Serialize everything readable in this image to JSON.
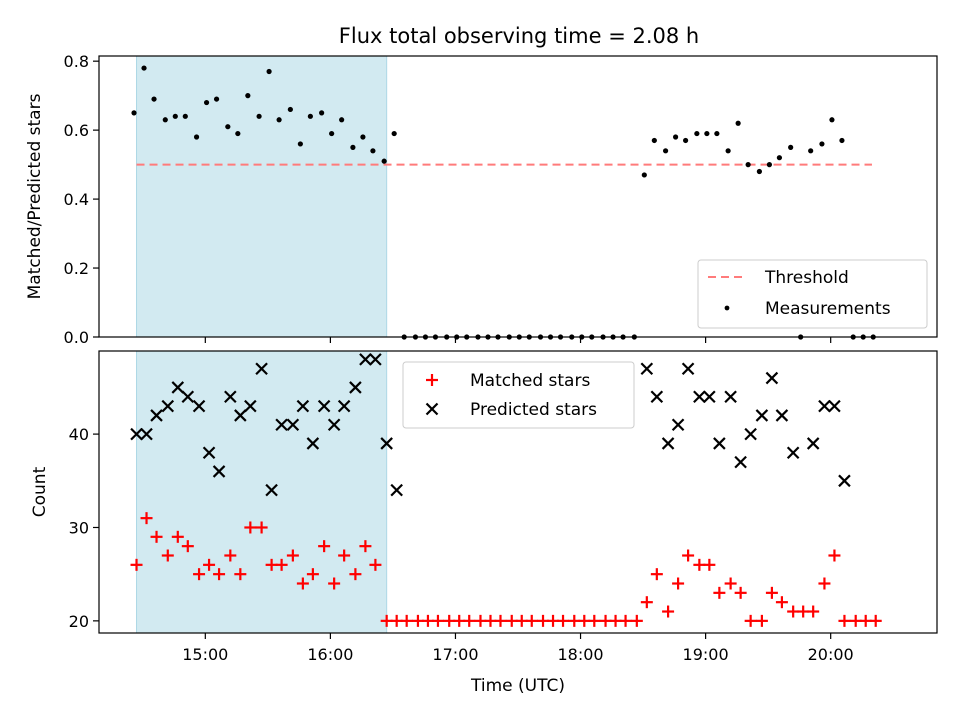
{
  "title": "Flux total observing time = 2.08 h",
  "colors": {
    "shade": "#add8e6",
    "threshold": "#ff7b7b",
    "measurement": "#000000",
    "matched": "#ff0000",
    "predicted": "#000000"
  },
  "chart_data": [
    {
      "type": "scatter",
      "ylabel": "Matched/Predicted stars",
      "ylim": [
        0,
        0.815
      ],
      "yticks": [
        "0.0",
        "0.2",
        "0.4",
        "0.6",
        "0.8"
      ],
      "x_unit": "hours (UTC)",
      "xlim": [
        14.15,
        20.85
      ],
      "shaded_span": [
        14.45,
        16.45
      ],
      "legend_position": "lower-right",
      "legend": [
        "Threshold",
        "Measurements"
      ],
      "threshold": {
        "name": "Threshold",
        "y": 0.5,
        "x": [
          14.45,
          20.33
        ]
      },
      "series": [
        {
          "name": "Measurements",
          "marker": "dot",
          "points": [
            [
              14.43,
              0.65
            ],
            [
              14.51,
              0.78
            ],
            [
              14.59,
              0.69
            ],
            [
              14.68,
              0.63
            ],
            [
              14.76,
              0.64
            ],
            [
              14.84,
              0.64
            ],
            [
              14.93,
              0.58
            ],
            [
              15.01,
              0.68
            ],
            [
              15.09,
              0.69
            ],
            [
              15.18,
              0.61
            ],
            [
              15.26,
              0.59
            ],
            [
              15.34,
              0.7
            ],
            [
              15.43,
              0.64
            ],
            [
              15.51,
              0.77
            ],
            [
              15.59,
              0.63
            ],
            [
              15.68,
              0.66
            ],
            [
              15.76,
              0.56
            ],
            [
              15.84,
              0.64
            ],
            [
              15.93,
              0.65
            ],
            [
              16.01,
              0.59
            ],
            [
              16.09,
              0.63
            ],
            [
              16.18,
              0.55
            ],
            [
              16.26,
              0.58
            ],
            [
              16.34,
              0.54
            ],
            [
              16.43,
              0.51
            ],
            [
              16.51,
              0.59
            ],
            [
              16.59,
              0.0
            ],
            [
              16.68,
              0.0
            ],
            [
              16.76,
              0.0
            ],
            [
              16.84,
              0.0
            ],
            [
              16.93,
              0.0
            ],
            [
              17.01,
              0.0
            ],
            [
              17.09,
              0.0
            ],
            [
              17.18,
              0.0
            ],
            [
              17.26,
              0.0
            ],
            [
              17.34,
              0.0
            ],
            [
              17.43,
              0.0
            ],
            [
              17.51,
              0.0
            ],
            [
              17.59,
              0.0
            ],
            [
              17.68,
              0.0
            ],
            [
              17.76,
              0.0
            ],
            [
              17.84,
              0.0
            ],
            [
              17.93,
              0.0
            ],
            [
              18.01,
              0.0
            ],
            [
              18.09,
              0.0
            ],
            [
              18.18,
              0.0
            ],
            [
              18.26,
              0.0
            ],
            [
              18.34,
              0.0
            ],
            [
              18.43,
              0.0
            ],
            [
              18.51,
              0.47
            ],
            [
              18.59,
              0.57
            ],
            [
              18.68,
              0.54
            ],
            [
              18.76,
              0.58
            ],
            [
              18.84,
              0.57
            ],
            [
              18.93,
              0.59
            ],
            [
              19.01,
              0.59
            ],
            [
              19.09,
              0.59
            ],
            [
              19.18,
              0.54
            ],
            [
              19.26,
              0.62
            ],
            [
              19.34,
              0.5
            ],
            [
              19.43,
              0.48
            ],
            [
              19.51,
              0.5
            ],
            [
              19.59,
              0.52
            ],
            [
              19.68,
              0.55
            ],
            [
              19.76,
              0.0
            ],
            [
              19.84,
              0.54
            ],
            [
              19.93,
              0.56
            ],
            [
              20.01,
              0.63
            ],
            [
              20.09,
              0.57
            ],
            [
              20.18,
              0.0
            ],
            [
              20.26,
              0.0
            ],
            [
              20.34,
              0.0
            ]
          ]
        }
      ]
    },
    {
      "type": "scatter",
      "xlabel": "Time (UTC)",
      "ylabel": "Count",
      "ylim": [
        18.7,
        48.9
      ],
      "yticks": [
        "20",
        "30",
        "40"
      ],
      "x_unit": "hours (UTC)",
      "xlim": [
        14.15,
        20.85
      ],
      "xticks": [
        "15:00",
        "16:00",
        "17:00",
        "18:00",
        "19:00",
        "20:00"
      ],
      "shaded_span": [
        14.45,
        16.45
      ],
      "legend_position": "upper-center",
      "legend": [
        "Matched stars",
        "Predicted stars"
      ],
      "series": [
        {
          "name": "Matched stars",
          "marker": "plus",
          "points": [
            [
              14.45,
              26
            ],
            [
              14.53,
              31
            ],
            [
              14.61,
              29
            ],
            [
              14.7,
              27
            ],
            [
              14.78,
              29
            ],
            [
              14.86,
              28
            ],
            [
              14.95,
              25
            ],
            [
              15.03,
              26
            ],
            [
              15.11,
              25
            ],
            [
              15.2,
              27
            ],
            [
              15.28,
              25
            ],
            [
              15.36,
              30
            ],
            [
              15.45,
              30
            ],
            [
              15.53,
              26
            ],
            [
              15.61,
              26
            ],
            [
              15.7,
              27
            ],
            [
              15.78,
              24
            ],
            [
              15.86,
              25
            ],
            [
              15.95,
              28
            ],
            [
              16.03,
              24
            ],
            [
              16.11,
              27
            ],
            [
              16.2,
              25
            ],
            [
              16.28,
              28
            ],
            [
              16.36,
              26
            ],
            [
              16.45,
              20
            ],
            [
              16.53,
              20
            ],
            [
              16.61,
              20
            ],
            [
              16.7,
              20
            ],
            [
              16.78,
              20
            ],
            [
              16.86,
              20
            ],
            [
              16.95,
              20
            ],
            [
              17.03,
              20
            ],
            [
              17.11,
              20
            ],
            [
              17.2,
              20
            ],
            [
              17.28,
              20
            ],
            [
              17.36,
              20
            ],
            [
              17.45,
              20
            ],
            [
              17.53,
              20
            ],
            [
              17.61,
              20
            ],
            [
              17.7,
              20
            ],
            [
              17.78,
              20
            ],
            [
              17.86,
              20
            ],
            [
              17.95,
              20
            ],
            [
              18.03,
              20
            ],
            [
              18.11,
              20
            ],
            [
              18.2,
              20
            ],
            [
              18.28,
              20
            ],
            [
              18.36,
              20
            ],
            [
              18.45,
              20
            ],
            [
              18.53,
              22
            ],
            [
              18.61,
              25
            ],
            [
              18.7,
              21
            ],
            [
              18.78,
              24
            ],
            [
              18.86,
              27
            ],
            [
              18.95,
              26
            ],
            [
              19.03,
              26
            ],
            [
              19.11,
              23
            ],
            [
              19.2,
              24
            ],
            [
              19.28,
              23
            ],
            [
              19.36,
              20
            ],
            [
              19.45,
              20
            ],
            [
              19.53,
              23
            ],
            [
              19.61,
              22
            ],
            [
              19.7,
              21
            ],
            [
              19.78,
              21
            ],
            [
              19.86,
              21
            ],
            [
              19.95,
              24
            ],
            [
              20.03,
              27
            ],
            [
              20.11,
              20
            ],
            [
              20.2,
              20
            ],
            [
              20.28,
              20
            ],
            [
              20.36,
              20
            ]
          ]
        },
        {
          "name": "Predicted stars",
          "marker": "x",
          "points": [
            [
              14.45,
              40
            ],
            [
              14.53,
              40
            ],
            [
              14.61,
              42
            ],
            [
              14.7,
              43
            ],
            [
              14.78,
              45
            ],
            [
              14.86,
              44
            ],
            [
              14.95,
              43
            ],
            [
              15.03,
              38
            ],
            [
              15.11,
              36
            ],
            [
              15.2,
              44
            ],
            [
              15.28,
              42
            ],
            [
              15.36,
              43
            ],
            [
              15.45,
              47
            ],
            [
              15.53,
              34
            ],
            [
              15.61,
              41
            ],
            [
              15.7,
              41
            ],
            [
              15.78,
              43
            ],
            [
              15.86,
              39
            ],
            [
              15.95,
              43
            ],
            [
              16.03,
              41
            ],
            [
              16.11,
              43
            ],
            [
              16.2,
              45
            ],
            [
              16.28,
              48
            ],
            [
              16.36,
              48
            ],
            [
              16.45,
              39
            ],
            [
              16.53,
              34
            ],
            [
              18.53,
              47
            ],
            [
              18.61,
              44
            ],
            [
              18.7,
              39
            ],
            [
              18.78,
              41
            ],
            [
              18.86,
              47
            ],
            [
              18.95,
              44
            ],
            [
              19.03,
              44
            ],
            [
              19.11,
              39
            ],
            [
              19.2,
              44
            ],
            [
              19.28,
              37
            ],
            [
              19.36,
              40
            ],
            [
              19.45,
              42
            ],
            [
              19.53,
              46
            ],
            [
              19.61,
              42
            ],
            [
              19.7,
              38
            ],
            [
              19.86,
              39
            ],
            [
              19.95,
              43
            ],
            [
              20.03,
              43
            ],
            [
              20.11,
              35
            ]
          ]
        }
      ]
    }
  ]
}
